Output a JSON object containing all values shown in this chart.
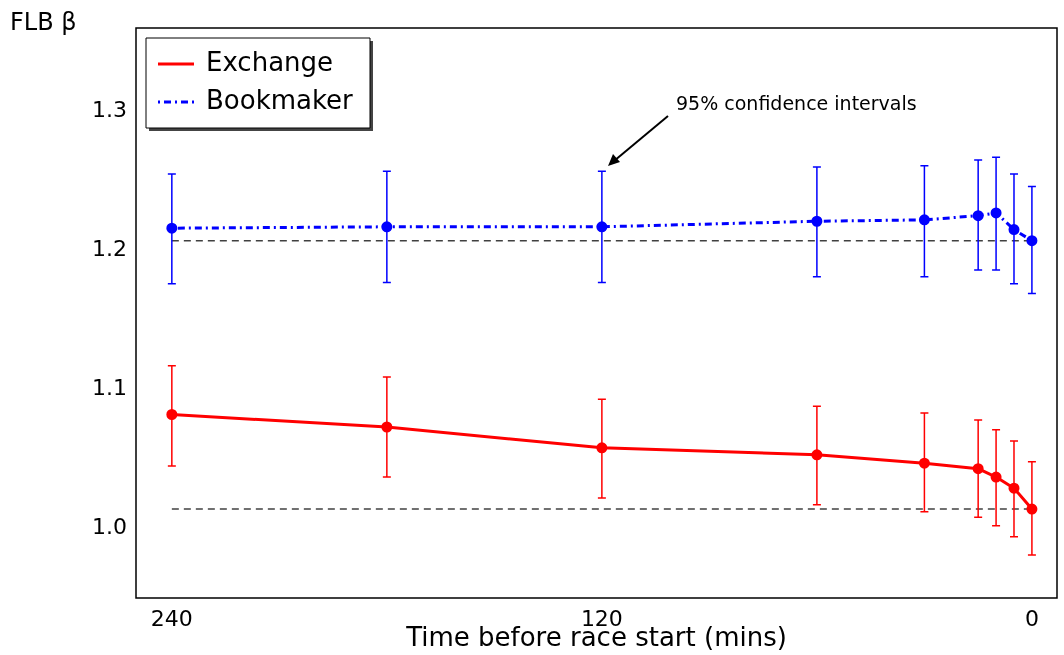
{
  "chart_data": {
    "type": "line",
    "ylabel": "FLB β",
    "xlabel": "Time before race start (mins)",
    "x": [
      240,
      180,
      120,
      60,
      30,
      15,
      10,
      5,
      0
    ],
    "xlim": [
      250,
      -7
    ],
    "xticks": [
      240,
      120,
      0
    ],
    "ylim": [
      0.95,
      1.36
    ],
    "yticks": [
      {
        "value": 1.0,
        "label": "1.0"
      },
      {
        "value": 1.1,
        "label": "1.1"
      },
      {
        "value": 1.2,
        "label": "1.2"
      },
      {
        "value": 1.3,
        "label": "1.3"
      }
    ],
    "series": [
      {
        "name": "Exchange",
        "color": "#ff0000",
        "line_style": "solid",
        "values": [
          1.082,
          1.073,
          1.058,
          1.053,
          1.047,
          1.043,
          1.037,
          1.029,
          1.014
        ],
        "errors": [
          [
            1.045,
            1.117
          ],
          [
            1.037,
            1.109
          ],
          [
            1.022,
            1.093
          ],
          [
            1.017,
            1.088
          ],
          [
            1.012,
            1.083
          ],
          [
            1.008,
            1.078
          ],
          [
            1.002,
            1.071
          ],
          [
            0.994,
            1.063
          ],
          [
            0.981,
            1.048
          ]
        ]
      },
      {
        "name": "Bookmaker",
        "color": "#0000ff",
        "line_style": "dotted",
        "values": [
          1.216,
          1.217,
          1.217,
          1.221,
          1.222,
          1.225,
          1.227,
          1.215,
          1.207
        ],
        "errors": [
          [
            1.176,
            1.255
          ],
          [
            1.177,
            1.257
          ],
          [
            1.177,
            1.257
          ],
          [
            1.181,
            1.26
          ],
          [
            1.181,
            1.261
          ],
          [
            1.186,
            1.265
          ],
          [
            1.186,
            1.267
          ],
          [
            1.176,
            1.255
          ],
          [
            1.169,
            1.246
          ]
        ]
      }
    ],
    "ref_lines": [
      {
        "axis": "y",
        "value": 1.207,
        "color": "#000000",
        "line_style": "dashed"
      },
      {
        "axis": "y",
        "value": 1.014,
        "color": "#000000",
        "line_style": "dashed"
      }
    ],
    "annotations": [
      "95% confidence intervals"
    ],
    "marker": "circle",
    "grid": false,
    "legend": "top left"
  }
}
